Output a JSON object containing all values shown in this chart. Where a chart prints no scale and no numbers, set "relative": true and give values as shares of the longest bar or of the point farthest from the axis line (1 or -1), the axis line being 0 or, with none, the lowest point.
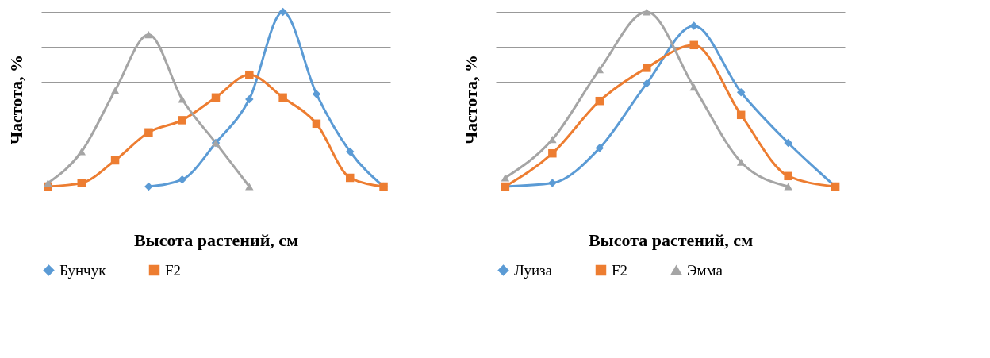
{
  "chart_data": [
    {
      "type": "line",
      "xlabel": "Высота растений, см",
      "ylabel": "Частота, %",
      "relative": true,
      "categories": [
        null,
        null,
        null,
        null,
        null,
        null,
        null,
        null,
        null,
        null,
        null
      ],
      "grid": "y",
      "legend": "bottom",
      "series": [
        {
          "name": "Бунчук",
          "color": "#5b9bd5",
          "marker": "diamond",
          "values": [
            null,
            null,
            null,
            0,
            0.04,
            0.25,
            0.5,
            1,
            0.53,
            0.2,
            0
          ]
        },
        {
          "name": "F2",
          "color": "#ed7d31",
          "marker": "square",
          "values": [
            0,
            0.02,
            0.15,
            0.31,
            0.38,
            0.51,
            0.64,
            0.51,
            0.36,
            0.05,
            0
          ]
        },
        {
          "color": "#a5a5a5",
          "marker": "triangle",
          "values": [
            0.02,
            0.2,
            0.55,
            0.87,
            0.5,
            0.25,
            0,
            null,
            null,
            null,
            null
          ]
        }
      ]
    },
    {
      "type": "line",
      "xlabel": "Высота растений, см",
      "ylabel": "Частота, %",
      "relative": true,
      "categories": [
        null,
        null,
        null,
        null,
        null,
        null,
        null,
        null
      ],
      "grid": "y",
      "legend": "bottom",
      "series": [
        {
          "name": "Луиза",
          "color": "#5b9bd5",
          "marker": "diamond",
          "values": [
            0,
            0.02,
            0.22,
            0.59,
            0.92,
            0.54,
            0.25,
            0
          ]
        },
        {
          "name": "F2",
          "color": "#ed7d31",
          "marker": "square",
          "values": [
            0,
            0.19,
            0.49,
            0.68,
            0.81,
            0.41,
            0.06,
            0
          ]
        },
        {
          "name": "Эмма",
          "color": "#a5a5a5",
          "marker": "triangle",
          "values": [
            0.05,
            0.27,
            0.67,
            1,
            0.57,
            0.14,
            0,
            null
          ]
        }
      ]
    }
  ]
}
